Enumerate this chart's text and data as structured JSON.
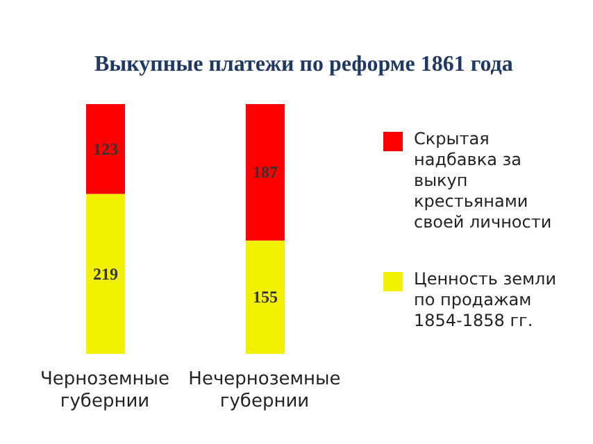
{
  "chart_data": {
    "type": "bar",
    "title": "Выкупные платежи по реформе 1861 года",
    "categories": [
      "Черноземные губернии",
      "Нечерноземные губернии"
    ],
    "stacked": true,
    "data_labels": true,
    "legend": "right",
    "series": [
      {
        "name": "Ценность земли по продажам 1854-1858 гг.",
        "color": "#f2f200",
        "values": [
          219,
          155
        ]
      },
      {
        "name": "Скрытая надбавка за выкуп крестьянами своей личности",
        "color": "#ff0000",
        "values": [
          123,
          187
        ]
      }
    ]
  }
}
